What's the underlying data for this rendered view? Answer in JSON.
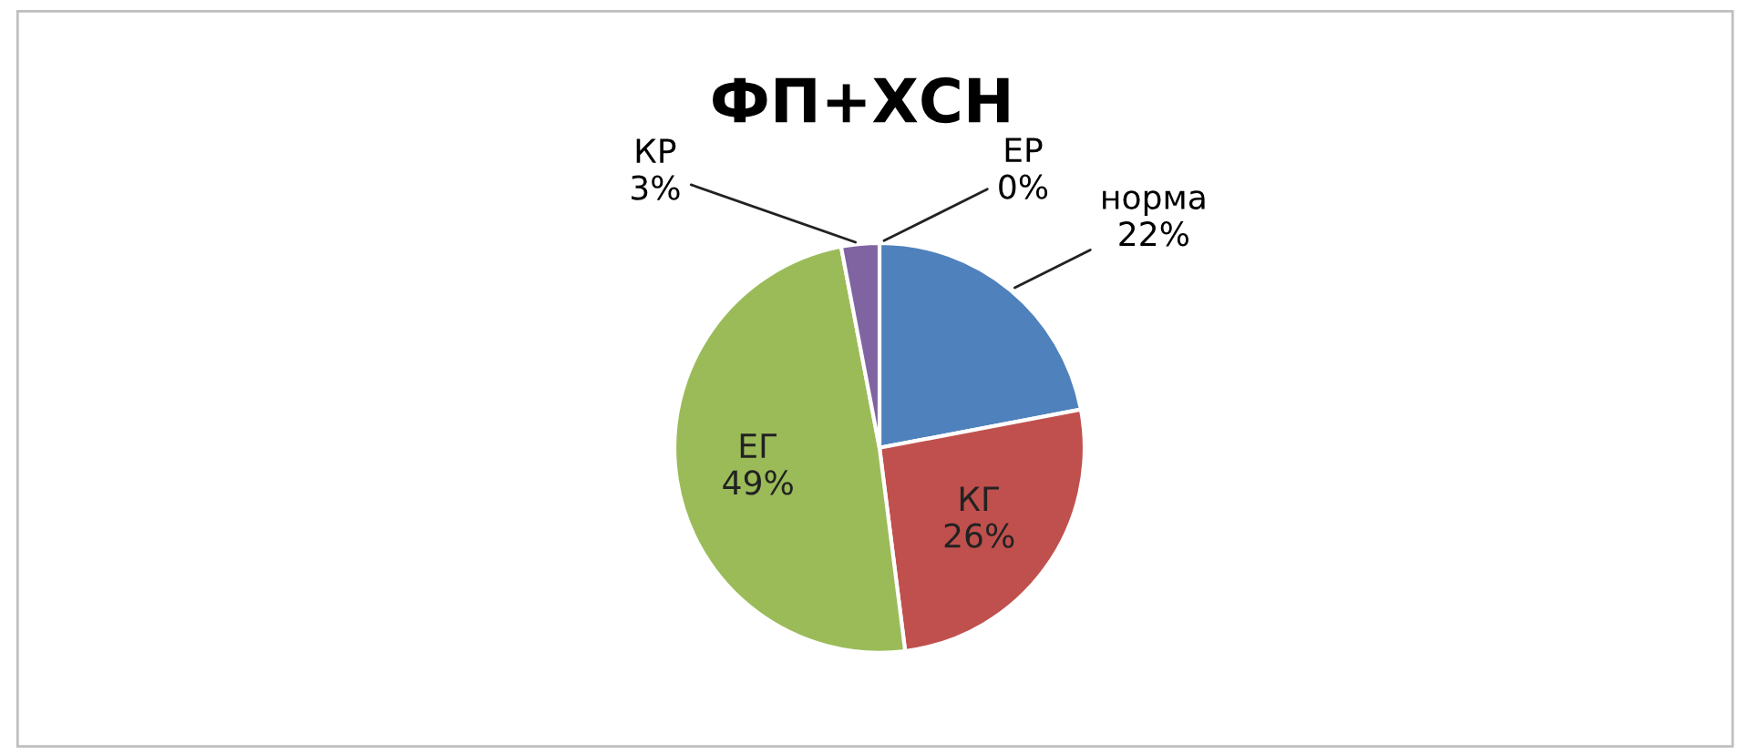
{
  "chart_data": {
    "type": "pie",
    "title": "ФП+ХСН",
    "categories": [
      "норма",
      "КГ",
      "ЕГ",
      "КР",
      "ЕР"
    ],
    "values": [
      22,
      26,
      49,
      3,
      0
    ],
    "value_labels": [
      "22%",
      "26%",
      "49%",
      "3%",
      "0%"
    ],
    "colors": [
      "#4f81bd",
      "#c0504d",
      "#9bbb59",
      "#8064a2",
      "#4bacc6"
    ],
    "legend": false
  }
}
